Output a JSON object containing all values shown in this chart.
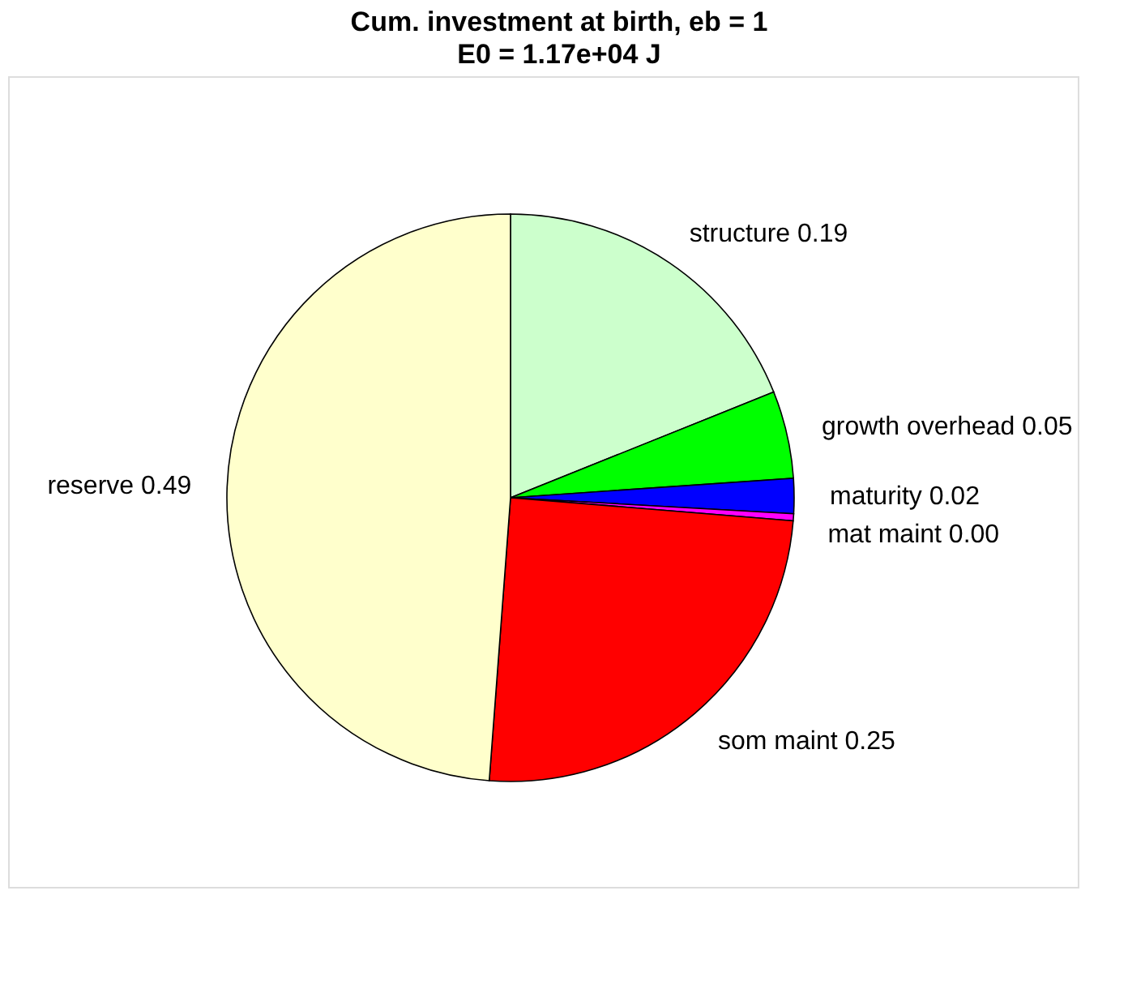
{
  "chart_data": {
    "type": "pie",
    "title": "Cum. investment at birth, eb = 1",
    "subtitle": "E0 = 1.17e+04 J",
    "categories": [
      "structure",
      "growth overhead",
      "maturity",
      "mat maint",
      "som maint",
      "reserve"
    ],
    "values": [
      0.19,
      0.05,
      0.02,
      0.004,
      0.25,
      0.49
    ],
    "value_labels": [
      "0.19",
      "0.05",
      "0.02",
      "0.00",
      "0.25",
      "0.49"
    ],
    "colors": [
      "#ccffcc",
      "#00ff00",
      "#0000ff",
      "#ff00ff",
      "#ff0000",
      "#ffffcc"
    ],
    "legend": false
  }
}
